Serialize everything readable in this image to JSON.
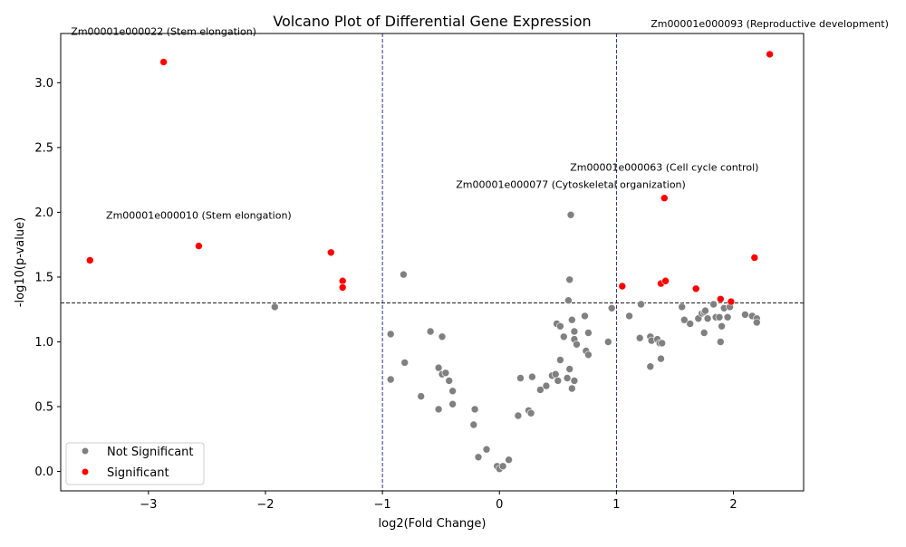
{
  "chart_data": {
    "type": "scatter",
    "title": "Volcano Plot of Differential Gene Expression",
    "xlabel": "log2(Fold Change)",
    "ylabel": "-log10(p-value)",
    "xlim": [
      -3.75,
      2.6
    ],
    "ylim": [
      -0.15,
      3.38
    ],
    "x_ticks": [
      -3,
      -2,
      -1,
      0,
      1,
      2
    ],
    "x_tick_labels": [
      "−3",
      "−2",
      "−1",
      "0",
      "1",
      "2"
    ],
    "y_ticks": [
      0.0,
      0.5,
      1.0,
      1.5,
      2.0,
      2.5,
      3.0
    ],
    "y_tick_labels": [
      "0.0",
      "0.5",
      "1.0",
      "1.5",
      "2.0",
      "2.5",
      "3.0"
    ],
    "grid": false,
    "threshold_lines": {
      "vertical": [
        -1,
        1
      ],
      "horizontal": [
        1.3
      ]
    },
    "legend_position": "bottom-left",
    "series": [
      {
        "name": "Not Significant",
        "color": "#808080",
        "points": [
          [
            -1.92,
            1.27
          ],
          [
            -0.82,
            1.52
          ],
          [
            -0.93,
            1.06
          ],
          [
            -0.93,
            0.71
          ],
          [
            -0.81,
            0.84
          ],
          [
            -0.67,
            0.58
          ],
          [
            -0.59,
            1.08
          ],
          [
            -0.49,
            1.04
          ],
          [
            -0.52,
            0.8
          ],
          [
            -0.49,
            0.75
          ],
          [
            -0.46,
            0.76
          ],
          [
            -0.43,
            0.7
          ],
          [
            -0.4,
            0.62
          ],
          [
            -0.4,
            0.52
          ],
          [
            -0.52,
            0.48
          ],
          [
            -0.21,
            0.48
          ],
          [
            -0.22,
            0.36
          ],
          [
            -0.18,
            0.11
          ],
          [
            -0.11,
            0.17
          ],
          [
            -0.02,
            0.04
          ],
          [
            0.0,
            0.02
          ],
          [
            0.03,
            0.04
          ],
          [
            0.08,
            0.09
          ],
          [
            0.16,
            0.43
          ],
          [
            0.18,
            0.72
          ],
          [
            0.25,
            0.47
          ],
          [
            0.27,
            0.45
          ],
          [
            0.28,
            0.73
          ],
          [
            0.35,
            0.63
          ],
          [
            0.4,
            0.66
          ],
          [
            0.45,
            0.74
          ],
          [
            0.48,
            0.75
          ],
          [
            0.5,
            0.7
          ],
          [
            0.52,
            0.86
          ],
          [
            0.49,
            1.14
          ],
          [
            0.52,
            1.12
          ],
          [
            0.55,
            1.04
          ],
          [
            0.58,
            0.72
          ],
          [
            0.6,
            0.79
          ],
          [
            0.62,
            0.64
          ],
          [
            0.64,
            0.7
          ],
          [
            0.62,
            1.17
          ],
          [
            0.64,
            1.08
          ],
          [
            0.64,
            1.02
          ],
          [
            0.66,
            0.98
          ],
          [
            0.59,
            1.32
          ],
          [
            0.6,
            1.48
          ],
          [
            0.61,
            1.98
          ],
          [
            0.73,
            1.2
          ],
          [
            0.74,
            0.93
          ],
          [
            0.76,
            0.9
          ],
          [
            0.76,
            1.07
          ],
          [
            0.93,
            1.0
          ],
          [
            0.96,
            1.26
          ],
          [
            1.11,
            1.2
          ],
          [
            1.21,
            1.29
          ],
          [
            1.2,
            1.03
          ],
          [
            1.29,
            1.04
          ],
          [
            1.3,
            1.01
          ],
          [
            1.35,
            1.02
          ],
          [
            1.37,
            0.99
          ],
          [
            1.39,
            0.99
          ],
          [
            1.29,
            0.81
          ],
          [
            1.38,
            0.87
          ],
          [
            1.56,
            1.27
          ],
          [
            1.58,
            1.17
          ],
          [
            1.63,
            1.14
          ],
          [
            1.7,
            1.18
          ],
          [
            1.73,
            1.22
          ],
          [
            1.75,
            1.23
          ],
          [
            1.76,
            1.24
          ],
          [
            1.75,
            1.07
          ],
          [
            1.78,
            1.18
          ],
          [
            1.83,
            1.29
          ],
          [
            1.85,
            1.19
          ],
          [
            1.88,
            1.19
          ],
          [
            1.9,
            1.12
          ],
          [
            1.92,
            1.26
          ],
          [
            1.95,
            1.19
          ],
          [
            1.97,
            1.27
          ],
          [
            1.89,
            1.0
          ],
          [
            2.1,
            1.21
          ],
          [
            2.16,
            1.2
          ],
          [
            2.2,
            1.18
          ],
          [
            2.2,
            1.15
          ]
        ]
      },
      {
        "name": "Significant",
        "color": "#ff0000",
        "points": [
          [
            -3.5,
            1.63
          ],
          [
            -2.87,
            3.16
          ],
          [
            -2.57,
            1.74
          ],
          [
            -1.44,
            1.69
          ],
          [
            -1.34,
            1.47
          ],
          [
            -1.34,
            1.42
          ],
          [
            1.05,
            1.43
          ],
          [
            1.38,
            1.45
          ],
          [
            1.42,
            1.47
          ],
          [
            1.41,
            2.11
          ],
          [
            1.68,
            1.41
          ],
          [
            1.89,
            1.33
          ],
          [
            1.98,
            1.31
          ],
          [
            2.18,
            1.65
          ],
          [
            2.31,
            3.22
          ]
        ]
      }
    ],
    "annotations": [
      {
        "text": "Zm00001e000022 (Stem elongation)",
        "x": -2.87,
        "y": 3.16
      },
      {
        "text": "Zm00001e000093 (Reproductive development)",
        "x": 2.31,
        "y": 3.22
      },
      {
        "text": "Zm00001e000063 (Cell cycle control)",
        "x": 1.41,
        "y": 2.11
      },
      {
        "text": "Zm00001e000077 (Cytoskeletal organization)",
        "x": 0.61,
        "y": 1.98
      },
      {
        "text": "Zm00001e000010 (Stem elongation)",
        "x": -2.57,
        "y": 1.74
      }
    ]
  }
}
